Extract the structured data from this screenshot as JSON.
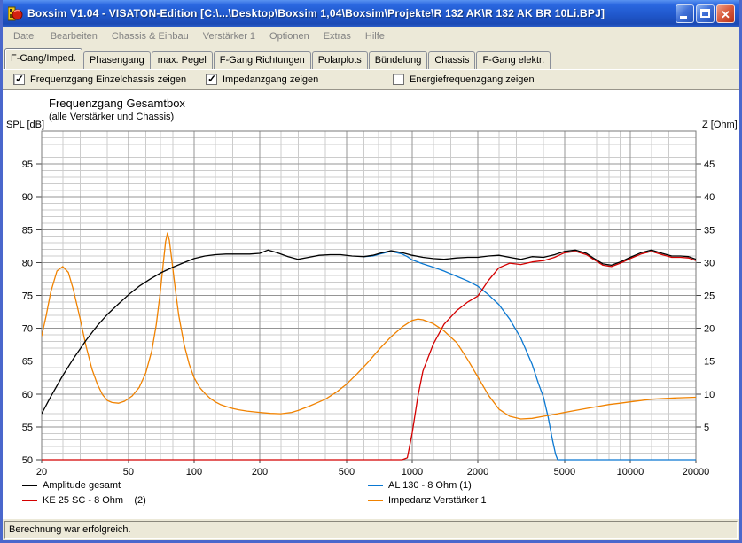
{
  "window": {
    "title": "Boxsim V1.04 - VISATON-Edition [C:\\...\\Desktop\\Boxsim 1,04\\Boxsim\\Projekte\\R 132 AK\\R 132 AK BR 10Li.BPJ]",
    "buttons": [
      "minimize",
      "maximize",
      "close"
    ]
  },
  "menu": {
    "items": [
      "Datei",
      "Bearbeiten",
      "Chassis & Einbau",
      "Verstärker 1",
      "Optionen",
      "Extras",
      "Hilfe"
    ]
  },
  "tabs": {
    "active": 0,
    "items": [
      "F-Gang/Imped.",
      "Phasengang",
      "max. Pegel",
      "F-Gang Richtungen",
      "Polarplots",
      "Bündelung",
      "Chassis",
      "F-Gang elektr."
    ]
  },
  "checkboxes": [
    {
      "label": "Frequenzgang Einzelchassis zeigen",
      "checked": true,
      "x": 12
    },
    {
      "label": "Impedanzgang zeigen",
      "checked": true,
      "x": 229
    },
    {
      "label": "Energiefrequenzgang zeigen",
      "checked": false,
      "x": 440
    }
  ],
  "statusbar": {
    "text": "Berechnung war erfolgreich."
  },
  "colors": {
    "grid_minor": "#cccccc",
    "grid_major": "#959595",
    "frame": "#7a7a7a",
    "accent_titlebar": "#2058cc"
  },
  "chart_data": {
    "type": "line",
    "title": "Frequenzgang Gesamtbox",
    "subtitle": "(alle Verstärker und Chassis)",
    "x_axis": {
      "scale": "log",
      "min": 20,
      "max": 20000,
      "major_ticks": [
        20,
        50,
        100,
        200,
        500,
        1000,
        2000,
        5000,
        10000,
        20000
      ],
      "minor_ticks": [
        25,
        30,
        40,
        60,
        70,
        80,
        90,
        125,
        150,
        250,
        300,
        400,
        600,
        700,
        800,
        900,
        1250,
        1500,
        2500,
        3000,
        4000,
        6000,
        7000,
        8000,
        9000,
        12500,
        15000
      ]
    },
    "y_left": {
      "label": "SPL [dB]",
      "min": 50,
      "max": 100,
      "major_step": 5,
      "minor_step": 1,
      "tick_labels": [
        95,
        90,
        85,
        80,
        75,
        70,
        65,
        60,
        55,
        50
      ]
    },
    "y_right": {
      "label": "Z [Ohm]",
      "min": 0,
      "max": 50,
      "major_step": 5,
      "minor_step": 1,
      "tick_labels": [
        45,
        40,
        35,
        30,
        25,
        20,
        15,
        10,
        5
      ]
    },
    "legend": [
      {
        "label": "Amplitude gesamt",
        "color": "#000000",
        "col": 0,
        "row": 0
      },
      {
        "label": "KE 25 SC - 8 Ohm    (2)",
        "color": "#d40000",
        "col": 0,
        "row": 1
      },
      {
        "label": "AL 130 - 8 Ohm (1)",
        "color": "#0a78d2",
        "col": 1,
        "row": 0
      },
      {
        "label": "Impedanz Verstärker 1",
        "color": "#f08200",
        "col": 1,
        "row": 1
      }
    ],
    "series": [
      {
        "name": "AL 130 - 8 Ohm (1)",
        "axis": "left",
        "color": "#0a78d2",
        "points": [
          [
            600,
            80.9
          ],
          [
            660,
            81.0
          ],
          [
            710,
            81.3
          ],
          [
            800,
            81.7
          ],
          [
            900,
            81.3
          ],
          [
            950,
            80.9
          ],
          [
            1000,
            80.4
          ],
          [
            1120,
            79.8
          ],
          [
            1250,
            79.3
          ],
          [
            1400,
            78.7
          ],
          [
            1600,
            77.9
          ],
          [
            1800,
            77.2
          ],
          [
            2000,
            76.4
          ],
          [
            2240,
            75.1
          ],
          [
            2500,
            73.6
          ],
          [
            2800,
            71.4
          ],
          [
            3150,
            68.5
          ],
          [
            3550,
            64.5
          ],
          [
            3800,
            61.5
          ],
          [
            4000,
            59.5
          ],
          [
            4200,
            56.5
          ],
          [
            4400,
            53.0
          ],
          [
            4550,
            50.8
          ],
          [
            4650,
            50.0
          ],
          [
            20000,
            50.0
          ]
        ]
      },
      {
        "name": "KE 25 SC - 8 Ohm    (2)",
        "axis": "left",
        "color": "#d40000",
        "points": [
          [
            20,
            50.0
          ],
          [
            900,
            50.0
          ],
          [
            950,
            50.3
          ],
          [
            1000,
            54.0
          ],
          [
            1060,
            59.5
          ],
          [
            1120,
            63.5
          ],
          [
            1250,
            67.6
          ],
          [
            1400,
            70.6
          ],
          [
            1600,
            72.7
          ],
          [
            1800,
            74.0
          ],
          [
            2000,
            74.9
          ],
          [
            2240,
            77.3
          ],
          [
            2500,
            79.2
          ],
          [
            2800,
            79.9
          ],
          [
            3150,
            79.7
          ],
          [
            3550,
            80.1
          ],
          [
            4000,
            80.3
          ],
          [
            4500,
            80.8
          ],
          [
            5000,
            81.5
          ],
          [
            5600,
            81.7
          ],
          [
            6300,
            81.2
          ],
          [
            6700,
            80.6
          ],
          [
            7500,
            79.6
          ],
          [
            8200,
            79.4
          ],
          [
            9000,
            79.9
          ],
          [
            10000,
            80.6
          ],
          [
            11200,
            81.3
          ],
          [
            12500,
            81.7
          ],
          [
            14000,
            81.2
          ],
          [
            15500,
            80.8
          ],
          [
            17000,
            80.8
          ],
          [
            18500,
            80.7
          ],
          [
            20000,
            80.3
          ]
        ]
      },
      {
        "name": "Impedanz Verstärker 1",
        "axis": "right",
        "color": "#f08200",
        "points": [
          [
            20,
            18.8
          ],
          [
            21,
            22.0
          ],
          [
            22,
            25.5
          ],
          [
            23.5,
            28.7
          ],
          [
            25,
            29.4
          ],
          [
            26.5,
            28.5
          ],
          [
            28,
            25.8
          ],
          [
            30,
            21.5
          ],
          [
            32,
            17.2
          ],
          [
            34,
            13.8
          ],
          [
            36,
            11.5
          ],
          [
            38,
            9.9
          ],
          [
            40,
            9.0
          ],
          [
            42,
            8.7
          ],
          [
            45,
            8.6
          ],
          [
            48,
            8.9
          ],
          [
            52,
            9.7
          ],
          [
            56,
            11.0
          ],
          [
            60,
            13.2
          ],
          [
            64,
            16.6
          ],
          [
            67,
            20.5
          ],
          [
            70,
            25.5
          ],
          [
            72,
            29.5
          ],
          [
            74,
            33.2
          ],
          [
            75.5,
            34.5
          ],
          [
            77,
            33.4
          ],
          [
            79,
            30.4
          ],
          [
            82,
            26.0
          ],
          [
            85,
            22.0
          ],
          [
            90,
            17.5
          ],
          [
            95,
            14.5
          ],
          [
            100,
            12.5
          ],
          [
            106,
            11.0
          ],
          [
            112,
            10.1
          ],
          [
            118,
            9.4
          ],
          [
            125,
            8.8
          ],
          [
            132,
            8.4
          ],
          [
            140,
            8.1
          ],
          [
            150,
            7.8
          ],
          [
            160,
            7.6
          ],
          [
            175,
            7.4
          ],
          [
            200,
            7.2
          ],
          [
            224,
            7.05
          ],
          [
            250,
            7.0
          ],
          [
            280,
            7.2
          ],
          [
            300,
            7.5
          ],
          [
            335,
            8.1
          ],
          [
            375,
            8.8
          ],
          [
            400,
            9.2
          ],
          [
            450,
            10.3
          ],
          [
            500,
            11.5
          ],
          [
            560,
            13.1
          ],
          [
            630,
            14.9
          ],
          [
            710,
            16.9
          ],
          [
            800,
            18.7
          ],
          [
            900,
            20.2
          ],
          [
            1000,
            21.2
          ],
          [
            1060,
            21.4
          ],
          [
            1120,
            21.3
          ],
          [
            1250,
            20.7
          ],
          [
            1400,
            19.6
          ],
          [
            1600,
            17.8
          ],
          [
            1800,
            15.2
          ],
          [
            2000,
            12.6
          ],
          [
            2240,
            9.8
          ],
          [
            2500,
            7.7
          ],
          [
            2800,
            6.6
          ],
          [
            3150,
            6.2
          ],
          [
            3550,
            6.3
          ],
          [
            4000,
            6.6
          ],
          [
            4500,
            6.9
          ],
          [
            5000,
            7.2
          ],
          [
            5600,
            7.5
          ],
          [
            6300,
            7.8
          ],
          [
            7100,
            8.1
          ],
          [
            8000,
            8.4
          ],
          [
            9000,
            8.6
          ],
          [
            10000,
            8.8
          ],
          [
            11200,
            9.0
          ],
          [
            12500,
            9.2
          ],
          [
            14000,
            9.3
          ],
          [
            16000,
            9.4
          ],
          [
            18000,
            9.45
          ],
          [
            20000,
            9.5
          ]
        ]
      },
      {
        "name": "Amplitude gesamt",
        "axis": "left",
        "color": "#000000",
        "points": [
          [
            20,
            57.0
          ],
          [
            22,
            59.6
          ],
          [
            25,
            62.8
          ],
          [
            28,
            65.4
          ],
          [
            32,
            68.2
          ],
          [
            36,
            70.4
          ],
          [
            40,
            72.1
          ],
          [
            45,
            73.7
          ],
          [
            50,
            75.1
          ],
          [
            56,
            76.4
          ],
          [
            63,
            77.5
          ],
          [
            71,
            78.5
          ],
          [
            80,
            79.3
          ],
          [
            90,
            80.0
          ],
          [
            100,
            80.6
          ],
          [
            112,
            81.0
          ],
          [
            125,
            81.2
          ],
          [
            140,
            81.3
          ],
          [
            160,
            81.3
          ],
          [
            180,
            81.3
          ],
          [
            200,
            81.4
          ],
          [
            218,
            81.9
          ],
          [
            240,
            81.5
          ],
          [
            270,
            80.9
          ],
          [
            300,
            80.5
          ],
          [
            335,
            80.8
          ],
          [
            375,
            81.1
          ],
          [
            420,
            81.2
          ],
          [
            470,
            81.2
          ],
          [
            530,
            81.0
          ],
          [
            600,
            80.9
          ],
          [
            660,
            81.1
          ],
          [
            710,
            81.4
          ],
          [
            800,
            81.8
          ],
          [
            900,
            81.5
          ],
          [
            1000,
            81.1
          ],
          [
            1120,
            80.8
          ],
          [
            1250,
            80.6
          ],
          [
            1400,
            80.5
          ],
          [
            1600,
            80.7
          ],
          [
            1800,
            80.8
          ],
          [
            2000,
            80.8
          ],
          [
            2240,
            81.0
          ],
          [
            2500,
            81.1
          ],
          [
            2800,
            80.8
          ],
          [
            3150,
            80.5
          ],
          [
            3550,
            80.9
          ],
          [
            4000,
            80.8
          ],
          [
            4500,
            81.2
          ],
          [
            5000,
            81.7
          ],
          [
            5600,
            81.9
          ],
          [
            6300,
            81.4
          ],
          [
            6700,
            80.8
          ],
          [
            7500,
            79.8
          ],
          [
            8200,
            79.6
          ],
          [
            9000,
            80.1
          ],
          [
            10000,
            80.8
          ],
          [
            11200,
            81.5
          ],
          [
            12500,
            81.9
          ],
          [
            14000,
            81.4
          ],
          [
            15500,
            81.0
          ],
          [
            17000,
            81.0
          ],
          [
            18500,
            80.9
          ],
          [
            20000,
            80.5
          ]
        ]
      }
    ]
  }
}
